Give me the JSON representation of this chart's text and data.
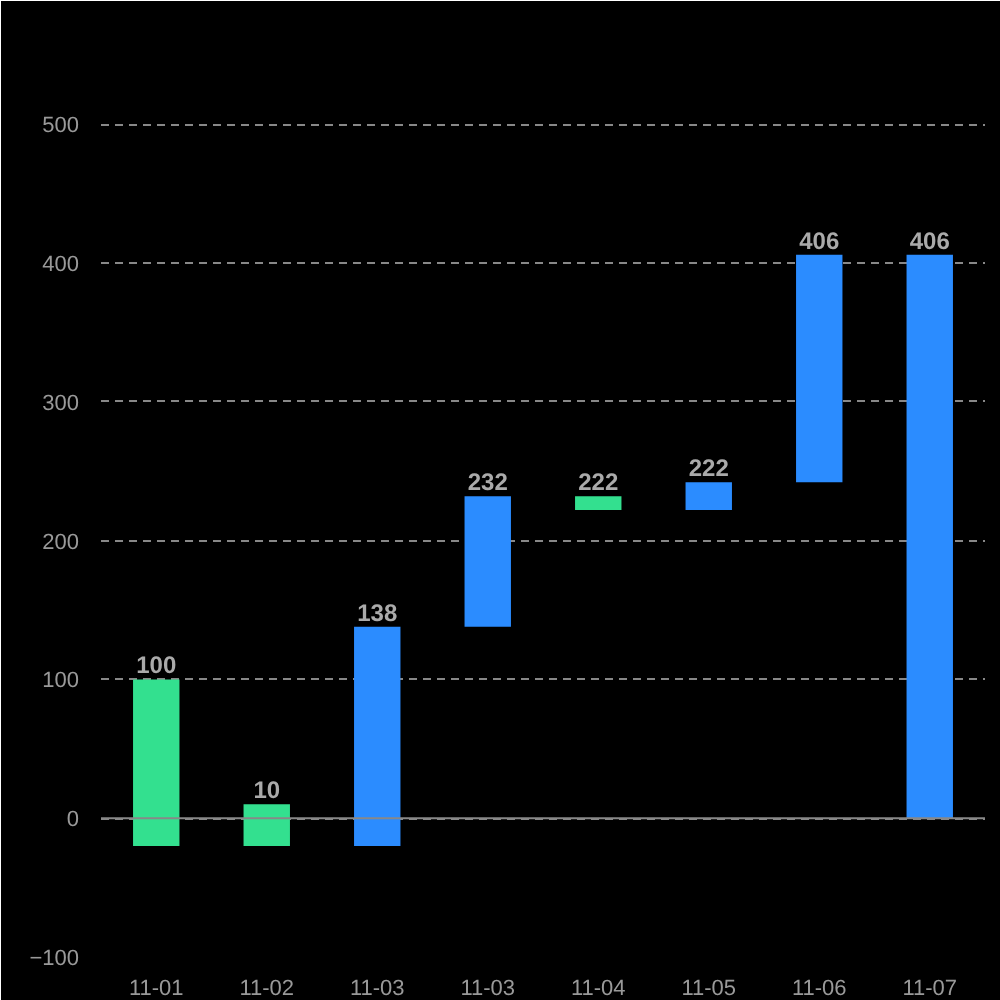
{
  "chart_data": {
    "type": "bar",
    "categories": [
      "11-01",
      "11-02",
      "11-03",
      "11-03",
      "11-04",
      "11-05",
      "11-06",
      "11-07"
    ],
    "values": [
      120,
      30,
      158,
      94,
      -10,
      -20,
      164,
      406
    ],
    "base": [
      -20,
      -20,
      -20,
      138,
      232,
      242,
      242,
      0
    ],
    "colors": [
      "#33e08f",
      "#33e08f",
      "#2b8cff",
      "#2b8cff",
      "#33e08f",
      "#2b8cff",
      "#2b8cff",
      "#2b8cff"
    ],
    "value_labels": [
      "100",
      "10",
      "138",
      "232",
      "222",
      "222",
      "406",
      "406"
    ],
    "ylim": [
      -100,
      560
    ],
    "yticks": [
      -100,
      0,
      100,
      200,
      300,
      400,
      500
    ],
    "grid": "y"
  }
}
